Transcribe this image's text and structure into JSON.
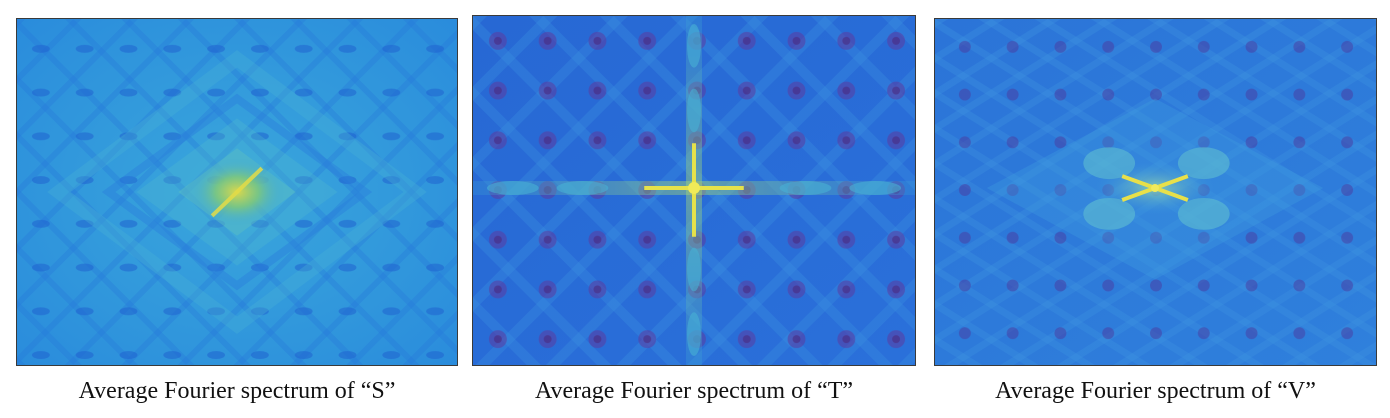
{
  "panels": [
    {
      "id": "S",
      "caption": "Average Fourier spectrum of “S”",
      "base_color": "#2b96dc",
      "peak_color": "#d2d84a",
      "center_pattern": "rotated-square"
    },
    {
      "id": "T",
      "caption": "Average Fourier spectrum of “T”",
      "base_color": "#2a6fd8",
      "peak_color": "#e6e24a",
      "center_pattern": "cross"
    },
    {
      "id": "V",
      "caption": "Average Fourier spectrum of “V”",
      "base_color": "#2f7ad8",
      "peak_color": "#e8e04a",
      "center_pattern": "x-shape"
    }
  ]
}
